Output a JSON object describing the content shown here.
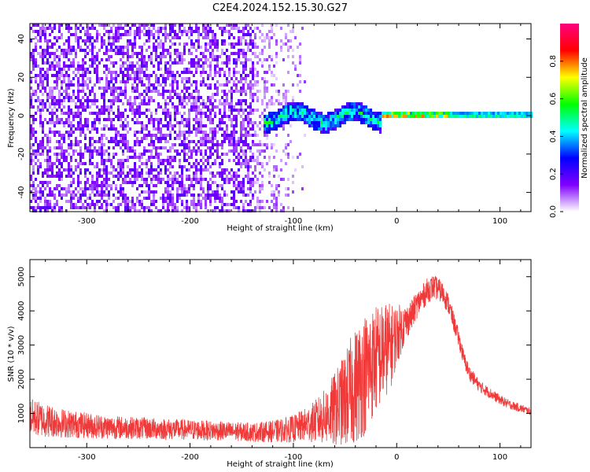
{
  "figure": {
    "title": "C2E4.2024.152.15.30.G27"
  },
  "chart_data": [
    {
      "type": "heatmap",
      "xlabel": "Height of straight line (km)",
      "ylabel": "Frequency (Hz)",
      "xlim": [
        -355,
        130
      ],
      "ylim": [
        -50,
        48
      ],
      "x_ticks": [
        -300,
        -200,
        -100,
        0,
        100
      ],
      "x_tick_labels": [
        "-300",
        "-200",
        "-100",
        "0",
        "100"
      ],
      "y_ticks": [
        -40,
        -20,
        0,
        20,
        40
      ],
      "y_tick_labels": [
        "-40",
        "-20",
        "0",
        "20",
        "40"
      ],
      "colorbar": {
        "label": "Normalized spectral amplitude",
        "range": [
          0,
          1
        ],
        "ticks": [
          0.0,
          0.2,
          0.4,
          0.6,
          0.8
        ],
        "tick_labels": [
          "0.0",
          "0.2",
          "0.4",
          "0.6",
          "0.8"
        ],
        "colormap": [
          "#ffffff",
          "#8000ff",
          "#0000ff",
          "#00ffff",
          "#00ff00",
          "#ffff00",
          "#ff0000",
          "#ff0080"
        ]
      },
      "features": [
        {
          "x_range": [
            -355,
            -140
          ],
          "freq_range": [
            -50,
            48
          ],
          "amplitude": [
            0.05,
            0.2
          ],
          "pattern": "broadband noise"
        },
        {
          "x_range": [
            -140,
            -85
          ],
          "freq_range": [
            -50,
            48
          ],
          "amplitude": [
            0.02,
            0.12
          ],
          "pattern": "sparse noise"
        },
        {
          "x_range": [
            -130,
            -15
          ],
          "freq_center": 0,
          "freq_halfwidth": 5,
          "amplitude": [
            0.3,
            0.6
          ],
          "pattern": "narrow band"
        },
        {
          "x_range": [
            -15,
            50
          ],
          "freq_center": 1,
          "freq_halfwidth": 2,
          "amplitude": [
            0.5,
            0.95
          ],
          "pattern": "narrow band peak"
        },
        {
          "x_range": [
            50,
            130
          ],
          "freq_center": 1,
          "freq_halfwidth": 2,
          "amplitude": [
            0.45,
            0.6
          ],
          "pattern": "narrow band"
        }
      ],
      "grid": false
    },
    {
      "type": "line",
      "xlabel": "Height of straight line (km)",
      "ylabel": "SNR (10 * v/v)",
      "xlim": [
        -355,
        130
      ],
      "ylim": [
        0,
        5500
      ],
      "x_ticks": [
        -300,
        -200,
        -100,
        0,
        100
      ],
      "x_tick_labels": [
        "-300",
        "-200",
        "-100",
        "0",
        "100"
      ],
      "y_ticks": [
        1000,
        2000,
        3000,
        4000,
        5000
      ],
      "y_tick_labels": [
        "1000",
        "2000",
        "3000",
        "4000",
        "5000"
      ],
      "series": [
        {
          "color": "#f03a3a",
          "x": [
            -355,
            -340,
            -320,
            -300,
            -280,
            -260,
            -240,
            -220,
            -200,
            -180,
            -160,
            -140,
            -120,
            -100,
            -90,
            -80,
            -70,
            -60,
            -50,
            -45,
            -40,
            -35,
            -30,
            -25,
            -20,
            -15,
            -10,
            -5,
            0,
            5,
            10,
            15,
            20,
            25,
            30,
            35,
            40,
            45,
            50,
            55,
            60,
            65,
            70,
            75,
            80,
            90,
            100,
            110,
            120,
            130
          ],
          "y": [
            900,
            800,
            700,
            650,
            600,
            580,
            560,
            540,
            520,
            500,
            470,
            450,
            470,
            550,
            650,
            750,
            900,
            1100,
            1400,
            1600,
            1800,
            2000,
            2200,
            2400,
            2600,
            2700,
            2900,
            3000,
            3300,
            3500,
            3700,
            3900,
            4200,
            4400,
            4600,
            4700,
            4650,
            4500,
            4200,
            3700,
            3200,
            2600,
            2200,
            2000,
            1800,
            1600,
            1400,
            1250,
            1150,
            1050
          ],
          "noise_amplitude": [
            550,
            500,
            420,
            380,
            350,
            330,
            320,
            310,
            300,
            290,
            280,
            280,
            320,
            400,
            480,
            600,
            800,
            1100,
            1400,
            1600,
            1700,
            1800,
            1800,
            1700,
            1600,
            1500,
            1400,
            1200,
            900,
            700,
            500,
            450,
            400,
            380,
            380,
            360,
            340,
            320,
            300,
            280,
            260,
            240,
            220,
            200,
            180,
            160,
            140,
            130,
            120,
            110
          ]
        }
      ],
      "grid": false
    }
  ]
}
